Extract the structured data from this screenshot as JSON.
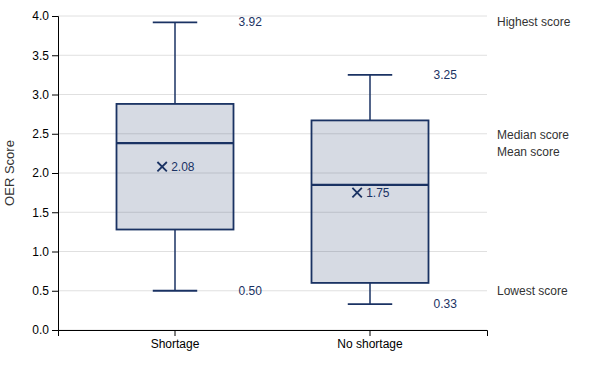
{
  "chart_data": {
    "type": "box",
    "categories": [
      "Shortage",
      "No shortage"
    ],
    "whisker_low": [
      0.5,
      0.33
    ],
    "q1": [
      1.28,
      0.6
    ],
    "median": [
      2.38,
      1.85
    ],
    "q3": [
      2.88,
      2.67
    ],
    "whisker_high": [
      3.92,
      3.25
    ],
    "mean": [
      2.08,
      1.75
    ],
    "data_labels": true,
    "value_labels": {
      "whisker_high": [
        "3.92",
        "3.25"
      ],
      "whisker_low": [
        "0.50",
        "0.33"
      ],
      "mean": [
        "2.08",
        "1.75"
      ]
    },
    "annotations": [
      "Highest score",
      "Median score",
      "Mean score",
      "Lowest score"
    ],
    "y_label": "OER Score",
    "color": "#1a3263",
    "marker": "x",
    "ylim": [
      0,
      4.0
    ],
    "yticks": [
      {
        "value": 0,
        "label": "0.0"
      },
      0.5,
      {
        "value": 1.0,
        "label": "1.0"
      },
      1.5,
      {
        "value": 2.0,
        "label": "2.0"
      },
      2.5,
      {
        "value": 3.0,
        "label": "3.0"
      },
      3.5,
      {
        "value": 4.0,
        "label": "4.0"
      }
    ],
    "grid": true
  }
}
